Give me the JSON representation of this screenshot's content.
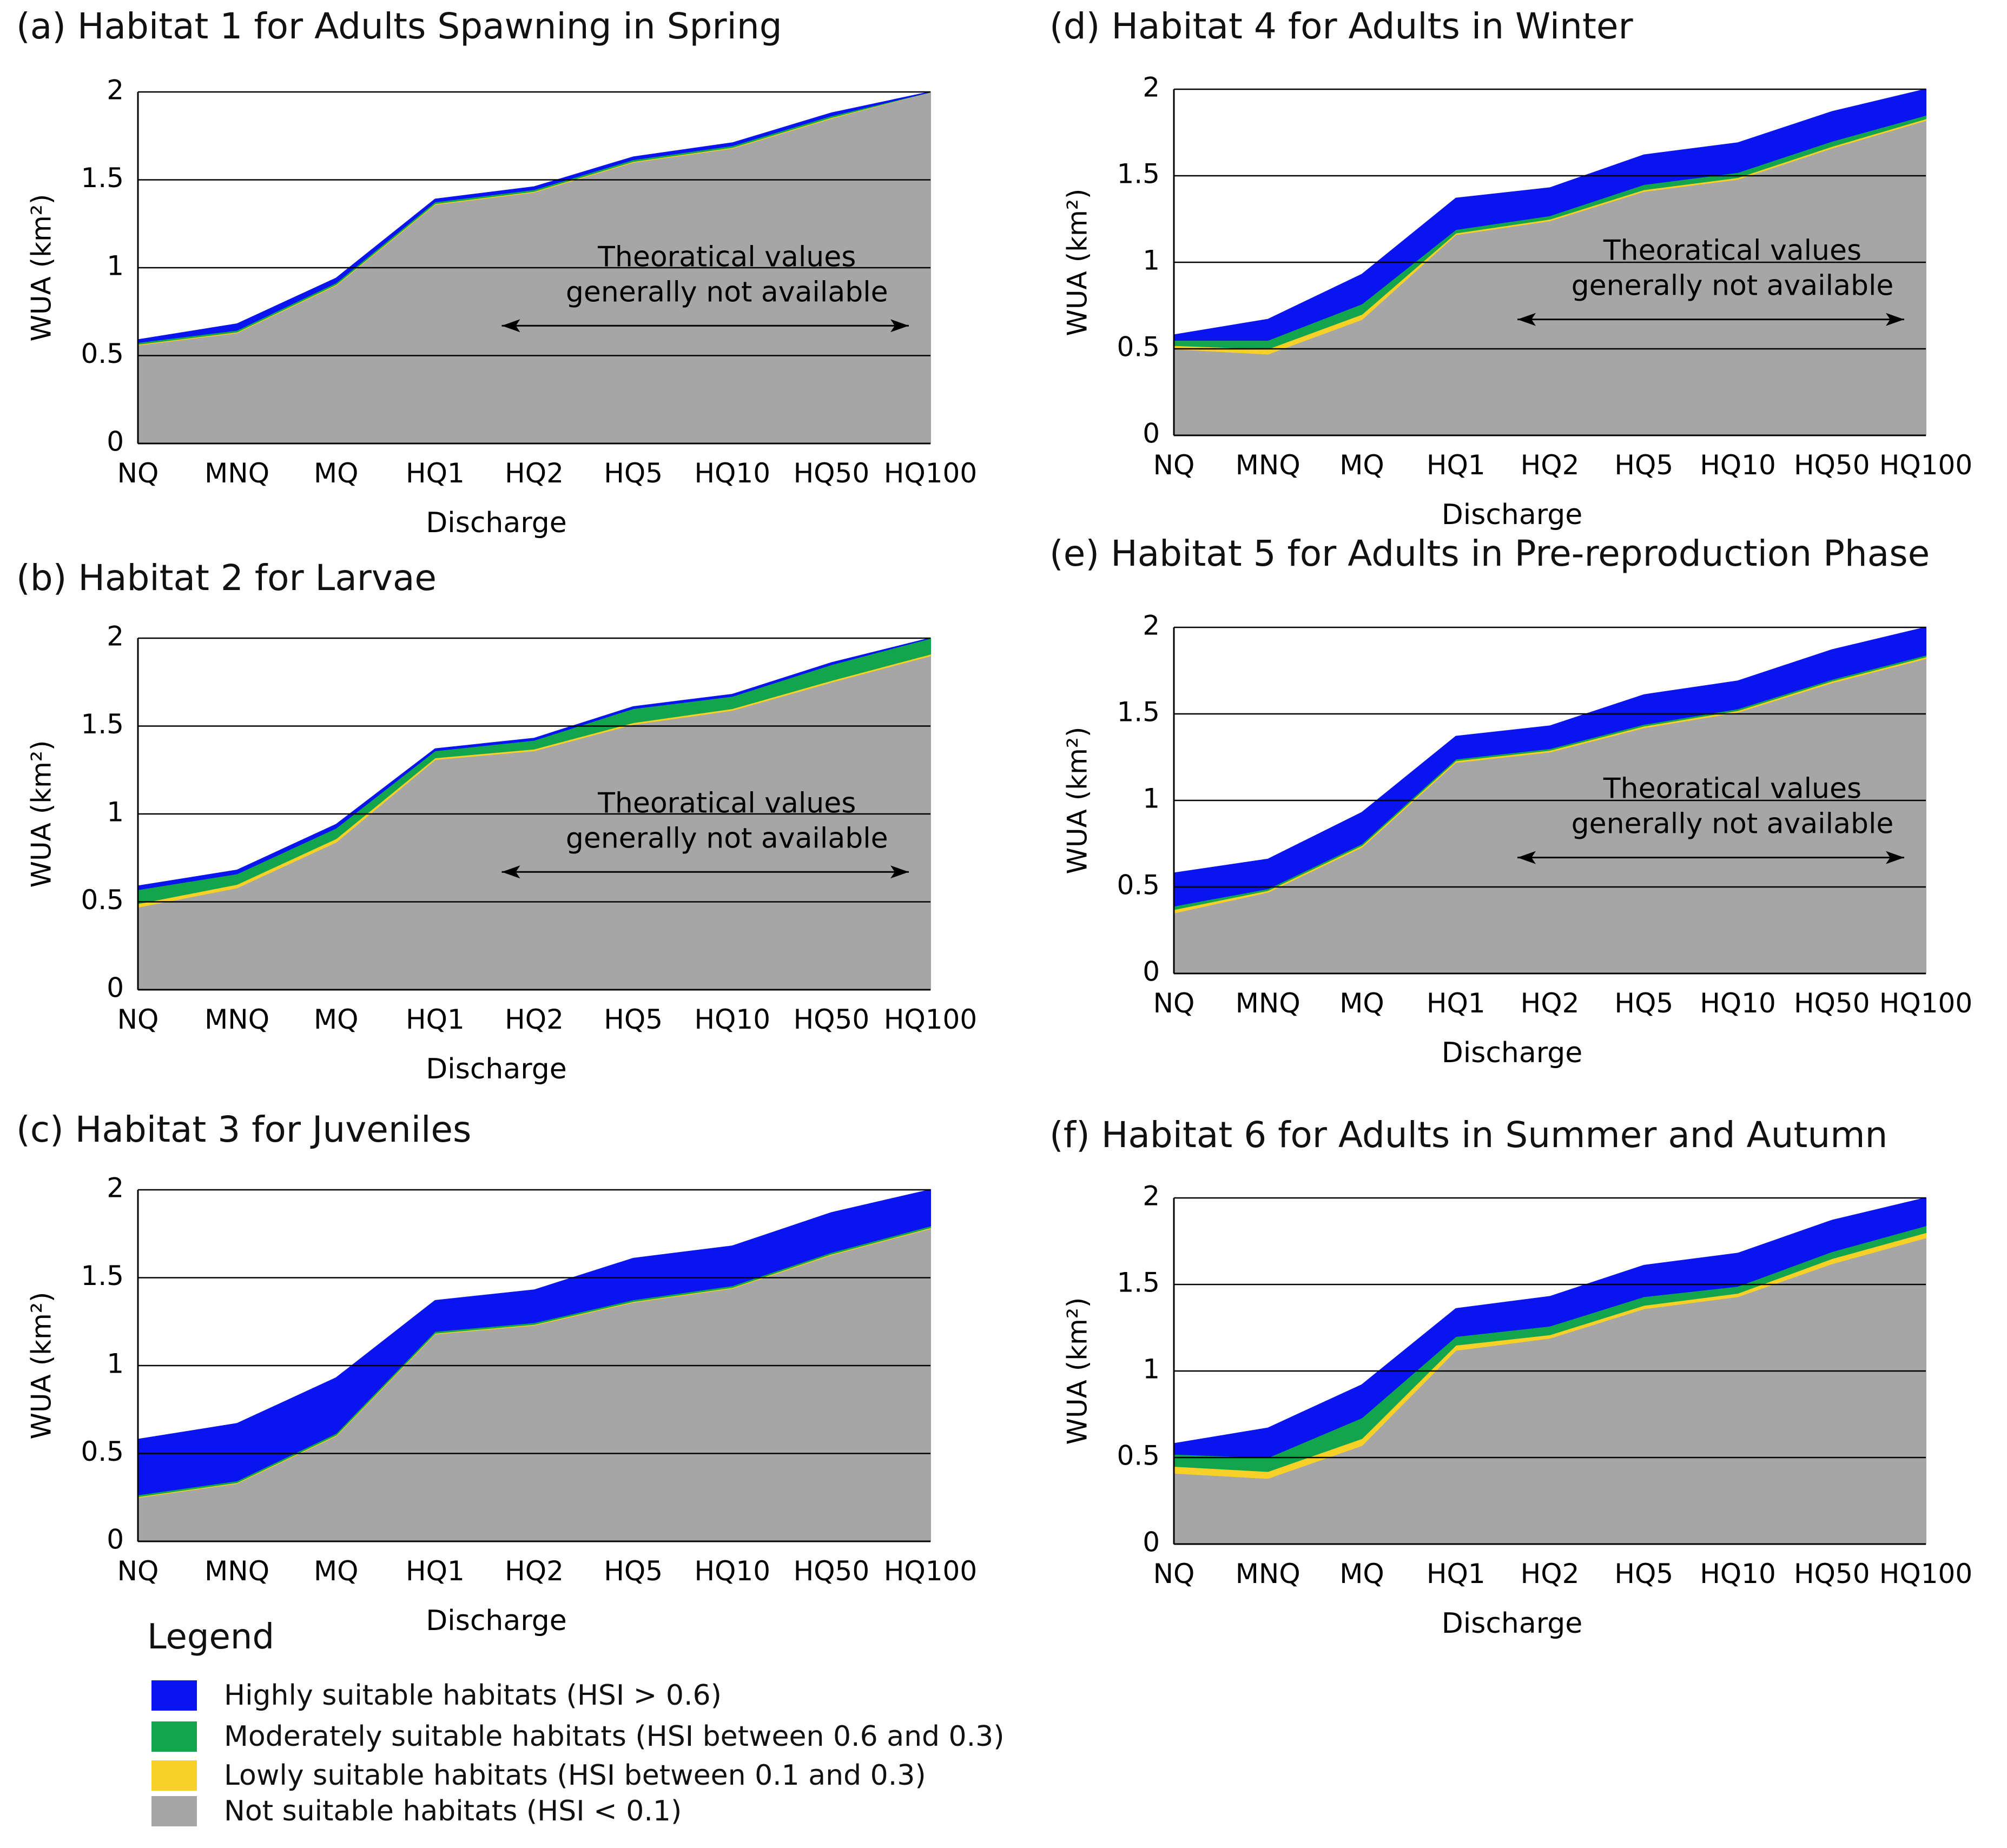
{
  "colors": {
    "highly": "#0a14f0",
    "moderately": "#12a54e",
    "lowly": "#f7d028",
    "not": "#a6a6a6",
    "axis": "#000000"
  },
  "chart_data": [
    {
      "id": "a",
      "type": "area",
      "title": "(a) Habitat 1 for Adults Spawning in Spring",
      "xlabel": "Discharge",
      "ylabel": "WUA (km²)",
      "categories": [
        "NQ",
        "MNQ",
        "MQ",
        "HQ1",
        "HQ2",
        "HQ5",
        "HQ10",
        "HQ50",
        "HQ100"
      ],
      "ylim": [
        0,
        2
      ],
      "yticks": [
        "0",
        "0.5",
        "1",
        "1.5",
        "2"
      ],
      "series": [
        {
          "name": "Not suitable habitats",
          "values": [
            0.56,
            0.63,
            0.9,
            1.36,
            1.43,
            1.6,
            1.68,
            1.85,
            2.0
          ]
        },
        {
          "name": "Lowly suitable habitats",
          "values": [
            0.005,
            0.005,
            0.005,
            0.005,
            0.005,
            0.005,
            0.005,
            0.005,
            0.0
          ]
        },
        {
          "name": "Moderately suitable habitats",
          "values": [
            0.01,
            0.01,
            0.01,
            0.01,
            0.01,
            0.01,
            0.01,
            0.01,
            0.0
          ]
        },
        {
          "name": "Highly suitable habitats",
          "values": [
            0.015,
            0.035,
            0.025,
            0.015,
            0.015,
            0.015,
            0.015,
            0.015,
            0.0
          ]
        }
      ],
      "annotation": {
        "line1": "Theoratical values",
        "line2": "generally not available",
        "from": "HQ2",
        "to": "HQ100"
      }
    },
    {
      "id": "b",
      "type": "area",
      "title": "(b) Habitat 2 for Larvae",
      "xlabel": "Discharge",
      "ylabel": "WUA (km²)",
      "categories": [
        "NQ",
        "MNQ",
        "MQ",
        "HQ1",
        "HQ2",
        "HQ5",
        "HQ10",
        "HQ50",
        "HQ100"
      ],
      "ylim": [
        0,
        2
      ],
      "yticks": [
        "0",
        "0.5",
        "1",
        "1.5",
        "2"
      ],
      "series": [
        {
          "name": "Not suitable habitats",
          "values": [
            0.47,
            0.58,
            0.84,
            1.31,
            1.36,
            1.51,
            1.59,
            1.75,
            1.9
          ]
        },
        {
          "name": "Lowly suitable habitats",
          "values": [
            0.02,
            0.02,
            0.02,
            0.01,
            0.01,
            0.01,
            0.01,
            0.01,
            0.01
          ]
        },
        {
          "name": "Moderately suitable habitats",
          "values": [
            0.08,
            0.06,
            0.06,
            0.04,
            0.05,
            0.08,
            0.07,
            0.09,
            0.09
          ]
        },
        {
          "name": "Highly suitable habitats",
          "values": [
            0.02,
            0.02,
            0.02,
            0.01,
            0.01,
            0.01,
            0.01,
            0.01,
            0.0
          ]
        }
      ],
      "annotation": {
        "line1": "Theoratical values",
        "line2": "generally not available",
        "from": "HQ2",
        "to": "HQ100"
      }
    },
    {
      "id": "c",
      "type": "area",
      "title": "(c) Habitat 3 for Juveniles",
      "xlabel": "Discharge",
      "ylabel": "WUA (km²)",
      "categories": [
        "NQ",
        "MNQ",
        "MQ",
        "HQ1",
        "HQ2",
        "HQ5",
        "HQ10",
        "HQ50",
        "HQ100"
      ],
      "ylim": [
        0,
        2
      ],
      "yticks": [
        "0",
        "0.5",
        "1",
        "1.5",
        "2"
      ],
      "series": [
        {
          "name": "Not suitable habitats",
          "values": [
            0.25,
            0.33,
            0.6,
            1.18,
            1.23,
            1.36,
            1.44,
            1.63,
            1.78
          ]
        },
        {
          "name": "Lowly suitable habitats",
          "values": [
            0.005,
            0.005,
            0.005,
            0.005,
            0.005,
            0.005,
            0.005,
            0.005,
            0.005
          ]
        },
        {
          "name": "Moderately suitable habitats",
          "values": [
            0.01,
            0.01,
            0.01,
            0.01,
            0.01,
            0.01,
            0.01,
            0.01,
            0.01
          ]
        },
        {
          "name": "Highly suitable habitats",
          "values": [
            0.315,
            0.325,
            0.315,
            0.175,
            0.185,
            0.235,
            0.225,
            0.225,
            0.205
          ]
        }
      ]
    },
    {
      "id": "d",
      "type": "area",
      "title": "(d) Habitat 4 for Adults in Winter",
      "xlabel": "Discharge",
      "ylabel": "WUA (km²)",
      "categories": [
        "NQ",
        "MNQ",
        "MQ",
        "HQ1",
        "HQ2",
        "HQ5",
        "HQ10",
        "HQ50",
        "HQ100"
      ],
      "ylim": [
        0,
        2
      ],
      "yticks": [
        "0",
        "0.5",
        "1",
        "1.5",
        "2"
      ],
      "series": [
        {
          "name": "Not suitable habitats",
          "values": [
            0.5,
            0.47,
            0.67,
            1.16,
            1.24,
            1.41,
            1.48,
            1.66,
            1.82
          ]
        },
        {
          "name": "Lowly suitable habitats",
          "values": [
            0.02,
            0.03,
            0.03,
            0.01,
            0.01,
            0.01,
            0.01,
            0.01,
            0.01
          ]
        },
        {
          "name": "Moderately suitable habitats",
          "values": [
            0.03,
            0.05,
            0.06,
            0.02,
            0.02,
            0.03,
            0.03,
            0.03,
            0.02
          ]
        },
        {
          "name": "Highly suitable habitats",
          "values": [
            0.03,
            0.12,
            0.17,
            0.18,
            0.16,
            0.17,
            0.17,
            0.17,
            0.15
          ]
        }
      ],
      "annotation": {
        "line1": "Theoratical values",
        "line2": "generally not available",
        "from": "HQ2",
        "to": "HQ100"
      }
    },
    {
      "id": "e",
      "type": "area",
      "title": "(e) Habitat 5 for Adults in Pre-reproduction Phase",
      "xlabel": "Discharge",
      "ylabel": "WUA (km²)",
      "categories": [
        "NQ",
        "MNQ",
        "MQ",
        "HQ1",
        "HQ2",
        "HQ5",
        "HQ10",
        "HQ50",
        "HQ100"
      ],
      "ylim": [
        0,
        2
      ],
      "yticks": [
        "0",
        "0.5",
        "1",
        "1.5",
        "2"
      ],
      "series": [
        {
          "name": "Not suitable habitats",
          "values": [
            0.35,
            0.47,
            0.73,
            1.22,
            1.28,
            1.42,
            1.51,
            1.68,
            1.82
          ]
        },
        {
          "name": "Lowly suitable habitats",
          "values": [
            0.02,
            0.01,
            0.01,
            0.01,
            0.01,
            0.01,
            0.01,
            0.01,
            0.01
          ]
        },
        {
          "name": "Moderately suitable habitats",
          "values": [
            0.02,
            0.01,
            0.01,
            0.01,
            0.01,
            0.01,
            0.01,
            0.01,
            0.01
          ]
        },
        {
          "name": "Highly suitable habitats",
          "values": [
            0.19,
            0.17,
            0.18,
            0.13,
            0.13,
            0.17,
            0.16,
            0.17,
            0.16
          ]
        }
      ],
      "annotation": {
        "line1": "Theoratical values",
        "line2": "generally not available",
        "from": "HQ2",
        "to": "HQ100"
      }
    },
    {
      "id": "f",
      "type": "area",
      "title": "(f) Habitat 6 for Adults in Summer and Autumn",
      "xlabel": "Discharge",
      "ylabel": "WUA (km²)",
      "categories": [
        "NQ",
        "MNQ",
        "MQ",
        "HQ1",
        "HQ2",
        "HQ5",
        "HQ10",
        "HQ50",
        "HQ100"
      ],
      "ylim": [
        0,
        2
      ],
      "yticks": [
        "0",
        "0.5",
        "1",
        "1.5",
        "2"
      ],
      "series": [
        {
          "name": "Not suitable habitats",
          "values": [
            0.41,
            0.38,
            0.57,
            1.12,
            1.19,
            1.36,
            1.43,
            1.62,
            1.77
          ]
        },
        {
          "name": "Lowly suitable habitats",
          "values": [
            0.04,
            0.04,
            0.04,
            0.03,
            0.02,
            0.02,
            0.02,
            0.03,
            0.03
          ]
        },
        {
          "name": "Moderately suitable habitats",
          "values": [
            0.07,
            0.08,
            0.12,
            0.05,
            0.05,
            0.05,
            0.04,
            0.04,
            0.04
          ]
        },
        {
          "name": "Highly suitable habitats",
          "values": [
            0.06,
            0.17,
            0.19,
            0.16,
            0.17,
            0.18,
            0.19,
            0.18,
            0.16
          ]
        }
      ]
    }
  ],
  "legend": {
    "title": "Legend",
    "items": [
      {
        "key": "highly",
        "label": "Highly suitable habitats (HSI > 0.6)"
      },
      {
        "key": "moderately",
        "label": "Moderately suitable habitats (HSI between 0.6 and 0.3)"
      },
      {
        "key": "lowly",
        "label": "Lowly suitable habitats (HSI between 0.1 and 0.3)"
      },
      {
        "key": "not",
        "label": "Not suitable habitats (HSI < 0.1)"
      }
    ]
  }
}
